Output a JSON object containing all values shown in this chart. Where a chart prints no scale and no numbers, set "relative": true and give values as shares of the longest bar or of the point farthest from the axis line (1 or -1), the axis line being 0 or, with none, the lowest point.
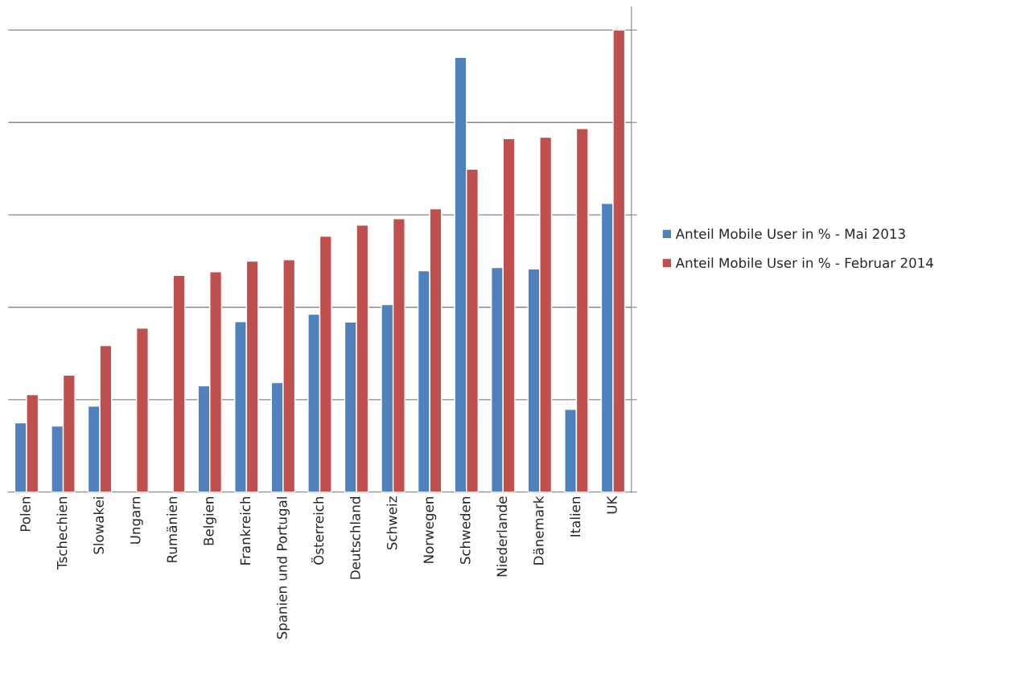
{
  "chart_data": {
    "type": "bar",
    "relative": true,
    "grid": "y",
    "legend": "right",
    "categories": [
      "Polen",
      "Tschechien",
      "Slowakei",
      "Ungarn",
      "Rumänien",
      "Belgien",
      "Frankreich",
      "Spanien und Portugal",
      "Österreich",
      "Deutschland",
      "Schweiz",
      "Norwegen",
      "Schweden",
      "Niederlande",
      "Dänemark",
      "Italien",
      "UK"
    ],
    "series": [
      {
        "name": "Anteil Mobile User in % - Mai 2013",
        "color": "#4f81bd",
        "values": [
          0.15,
          0.143,
          0.186,
          null,
          null,
          0.23,
          0.369,
          0.237,
          0.385,
          0.368,
          0.406,
          0.479,
          0.941,
          0.486,
          0.483,
          0.179,
          0.625
        ]
      },
      {
        "name": "Anteil Mobile User in % - Februar 2014",
        "color": "#c0504d",
        "values": [
          0.211,
          0.253,
          0.317,
          0.355,
          0.469,
          0.477,
          0.5,
          0.503,
          0.554,
          0.578,
          0.592,
          0.613,
          0.699,
          0.765,
          0.768,
          0.787,
          1.0
        ]
      }
    ]
  }
}
